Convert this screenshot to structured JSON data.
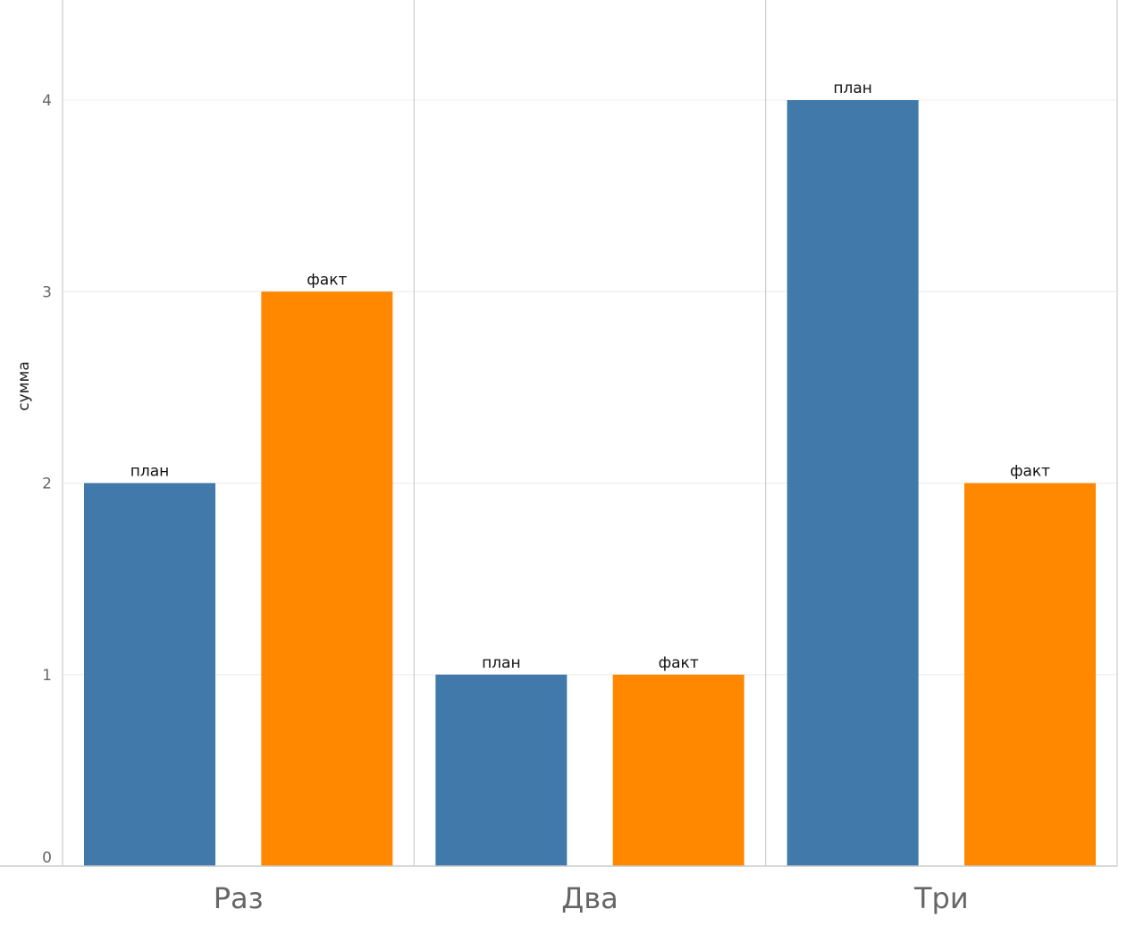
{
  "chart_data": {
    "type": "bar",
    "ylabel": "сумма",
    "ylim": [
      0,
      4.5
    ],
    "yticks": [
      0,
      1,
      2,
      3,
      4
    ],
    "categories": [
      "Раз",
      "Два",
      "Три"
    ],
    "series": [
      {
        "name": "план",
        "color": "#4179aa",
        "values": [
          2,
          1,
          4
        ]
      },
      {
        "name": "факт",
        "color": "#ff8800",
        "values": [
          3,
          1,
          2
        ]
      }
    ],
    "grid": true,
    "legend": "none"
  }
}
